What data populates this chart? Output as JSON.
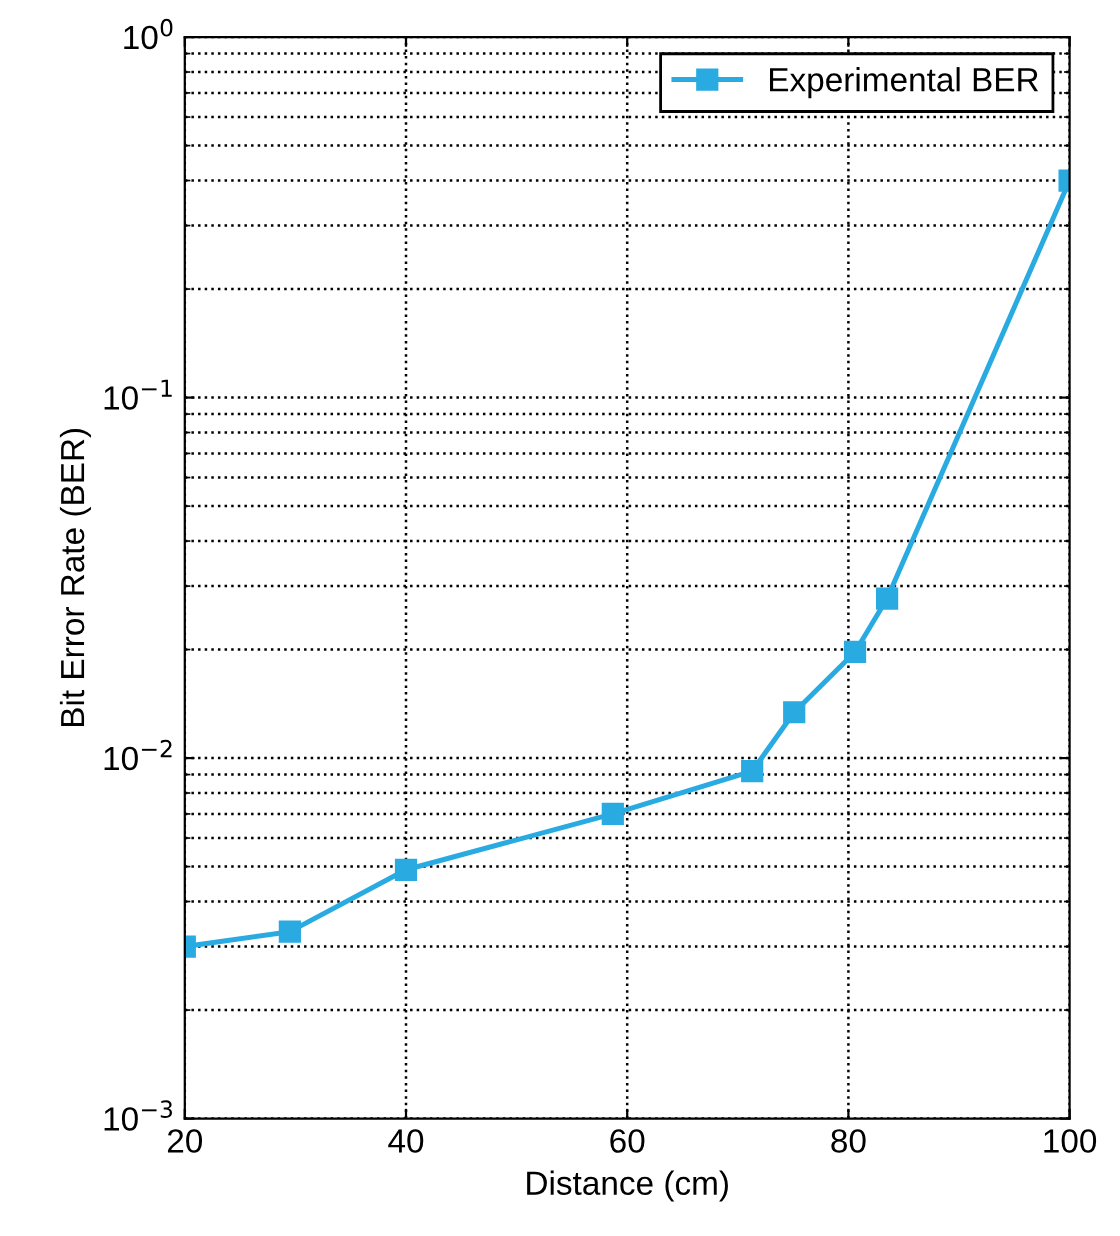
{
  "chart_data": {
    "type": "line",
    "xlabel": "Distance (cm)",
    "ylabel": "Bit Error Rate (BER)",
    "x": [
      20,
      29.5,
      40,
      58.7,
      71.3,
      75.1,
      80.6,
      83.5,
      100
    ],
    "series": [
      {
        "name": "Experimental BER",
        "color": "#29abe2",
        "values": [
          0.003,
          0.0033,
          0.0049,
          0.007,
          0.0092,
          0.0134,
          0.0197,
          0.0277,
          0.4
        ]
      }
    ],
    "log": true,
    "xlim": [
      20,
      100
    ],
    "xticks": [
      20,
      40,
      60,
      80,
      100
    ],
    "ylim": [
      0.001,
      1
    ],
    "yticks": [
      {
        "value": 0.001,
        "label": "10$^{−3}$"
      },
      {
        "value": 0.01,
        "label": "10$^{−2}$"
      },
      {
        "value": 0.1,
        "label": "10$^{−1}$"
      },
      {
        "value": 1,
        "label": "10$^{0}$"
      }
    ],
    "grid": true,
    "legend": "top right",
    "marker": "square",
    "line_style": "solid"
  }
}
